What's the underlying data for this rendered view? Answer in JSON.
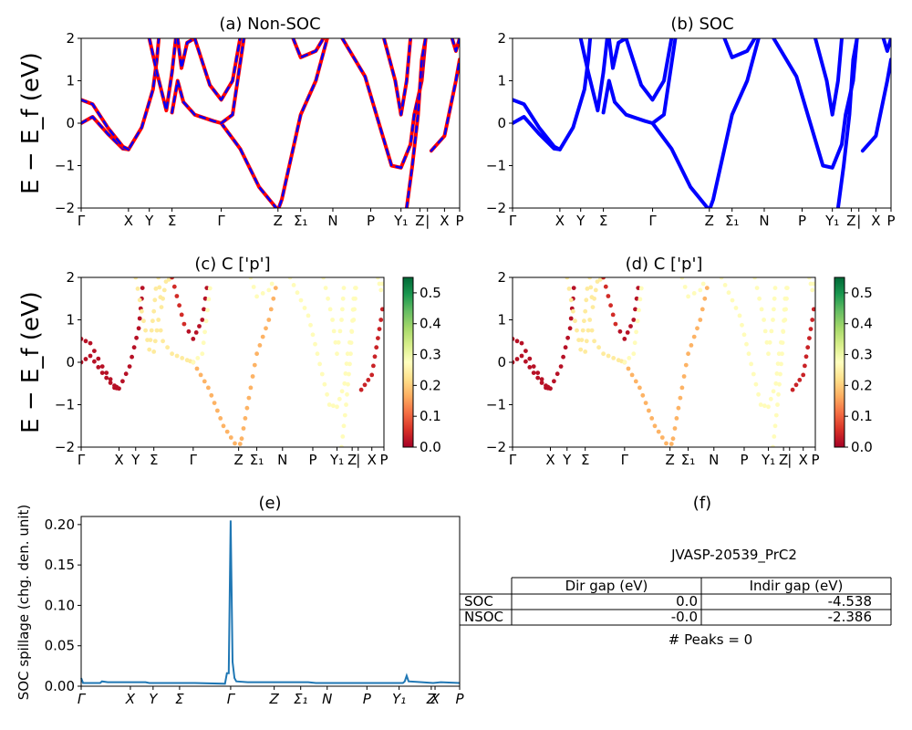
{
  "chart_data": [
    {
      "id": "a",
      "type": "line",
      "title": "(a) Non-SOC",
      "ylabel": "E − E_f (eV)",
      "ylim": [
        -2,
        2
      ],
      "yticks": [
        "−2",
        "−1",
        "0",
        "1",
        "2"
      ],
      "kpoints": [
        {
          "label": "Γ",
          "x": 0.0
        },
        {
          "label": "X",
          "x": 0.125
        },
        {
          "label": "Y",
          "x": 0.18
        },
        {
          "label": "Σ",
          "x": 0.24
        },
        {
          "label": "Γ",
          "x": 0.37
        },
        {
          "label": "Z",
          "x": 0.52
        },
        {
          "label": "Σ₁",
          "x": 0.58
        },
        {
          "label": "N",
          "x": 0.665
        },
        {
          "label": "P",
          "x": 0.765
        },
        {
          "label": "Y₁",
          "x": 0.845
        },
        {
          "label": "Z",
          "x": 0.895
        },
        {
          "label": "|",
          "x": 0.915
        },
        {
          "label": "X",
          "x": 0.96
        },
        {
          "label": "P",
          "x": 1.0
        }
      ],
      "series": [
        {
          "color": "#ff0000",
          "dash": "none",
          "bands": [
            [
              [
                0,
                0
              ],
              [
                0.03,
                0.15
              ],
              [
                0.07,
                -0.25
              ],
              [
                0.11,
                -0.6
              ],
              [
                0.125,
                -0.62
              ],
              [
                0.16,
                -0.1
              ],
              [
                0.19,
                0.8
              ],
              [
                0.2,
                1.5
              ],
              [
                0.205,
                2
              ]
            ],
            [
              [
                0,
                0.55
              ],
              [
                0.03,
                0.45
              ],
              [
                0.07,
                -0.1
              ],
              [
                0.11,
                -0.55
              ],
              [
                0.125,
                -0.62
              ]
            ],
            [
              [
                0.18,
                2
              ],
              [
                0.2,
                1.2
              ],
              [
                0.225,
                0.3
              ],
              [
                0.24,
                1.2
              ],
              [
                0.25,
                2
              ]
            ],
            [
              [
                0.24,
                0.25
              ],
              [
                0.255,
                1.0
              ],
              [
                0.27,
                0.5
              ],
              [
                0.3,
                0.2
              ],
              [
                0.35,
                0.05
              ],
              [
                0.37,
                0.0
              ],
              [
                0.42,
                -0.6
              ],
              [
                0.47,
                -1.5
              ],
              [
                0.52,
                -2.05
              ],
              [
                0.53,
                -1.8
              ],
              [
                0.56,
                -0.6
              ],
              [
                0.58,
                0.2
              ],
              [
                0.62,
                1.0
              ],
              [
                0.65,
                2
              ]
            ],
            [
              [
                0.255,
                2
              ],
              [
                0.265,
                1.3
              ],
              [
                0.28,
                1.9
              ],
              [
                0.3,
                2
              ]
            ],
            [
              [
                0.3,
                2
              ],
              [
                0.34,
                0.9
              ],
              [
                0.37,
                0.55
              ],
              [
                0.4,
                1.0
              ],
              [
                0.42,
                2
              ]
            ],
            [
              [
                0.37,
                0.0
              ],
              [
                0.4,
                0.2
              ],
              [
                0.43,
                2
              ]
            ],
            [
              [
                0.56,
                2
              ],
              [
                0.58,
                1.55
              ],
              [
                0.62,
                1.7
              ],
              [
                0.64,
                2
              ]
            ],
            [
              [
                0.69,
                2
              ],
              [
                0.75,
                1.1
              ],
              [
                0.78,
                0.2
              ],
              [
                0.82,
                -1.0
              ],
              [
                0.845,
                -1.05
              ],
              [
                0.87,
                -0.5
              ],
              [
                0.88,
                0.2
              ],
              [
                0.9,
                1.0
              ],
              [
                0.91,
                2
              ]
            ],
            [
              [
                0.8,
                2
              ],
              [
                0.83,
                1.0
              ],
              [
                0.845,
                0.2
              ],
              [
                0.86,
                1.0
              ],
              [
                0.87,
                2
              ]
            ],
            [
              [
                0.86,
                -2
              ],
              [
                0.875,
                -1.0
              ],
              [
                0.89,
                0.2
              ],
              [
                0.9,
                1.5
              ],
              [
                0.91,
                2
              ]
            ],
            [
              [
                0.925,
                -0.65
              ],
              [
                0.96,
                -0.3
              ],
              [
                0.99,
                1.0
              ],
              [
                1.0,
                1.5
              ]
            ],
            [
              [
                0.98,
                2
              ],
              [
                0.99,
                1.7
              ],
              [
                1.0,
                2
              ]
            ]
          ]
        },
        {
          "color": "#0000ff",
          "dash": "6,6",
          "bands": "same-as-previous"
        }
      ]
    },
    {
      "id": "b",
      "type": "line",
      "title": "(b) SOC",
      "ylim": [
        -2,
        2
      ],
      "yticks": [
        "−2",
        "−1",
        "0",
        "1",
        "2"
      ],
      "color": "#0000ff",
      "kpoints": [
        {
          "label": "Γ",
          "x": 0.0
        },
        {
          "label": "X",
          "x": 0.125
        },
        {
          "label": "Y",
          "x": 0.18
        },
        {
          "label": "Σ",
          "x": 0.24
        },
        {
          "label": "Γ",
          "x": 0.37
        },
        {
          "label": "Z",
          "x": 0.52
        },
        {
          "label": "Σ₁",
          "x": 0.58
        },
        {
          "label": "N",
          "x": 0.665
        },
        {
          "label": "P",
          "x": 0.765
        },
        {
          "label": "Y₁",
          "x": 0.845
        },
        {
          "label": "Z",
          "x": 0.895
        },
        {
          "label": "|",
          "x": 0.915
        },
        {
          "label": "X",
          "x": 0.96
        },
        {
          "label": "P",
          "x": 1.0
        }
      ]
    },
    {
      "id": "c",
      "type": "scatter",
      "title": "(c)  C ['p']",
      "ylabel": "E − E_f (eV)",
      "ylim": [
        -2,
        2
      ],
      "yticks": [
        "−2",
        "−1",
        "0",
        "1",
        "2"
      ],
      "colorbar": {
        "min": 0.0,
        "max": 0.55,
        "ticks": [
          "0.0",
          "0.1",
          "0.2",
          "0.3",
          "0.4",
          "0.5"
        ]
      },
      "kpoints": [
        {
          "label": "Γ",
          "x": 0.0
        },
        {
          "label": "X",
          "x": 0.125
        },
        {
          "label": "Y",
          "x": 0.18
        },
        {
          "label": "Σ",
          "x": 0.24
        },
        {
          "label": "Γ",
          "x": 0.37
        },
        {
          "label": "Z",
          "x": 0.52
        },
        {
          "label": "Σ₁",
          "x": 0.58
        },
        {
          "label": "N",
          "x": 0.665
        },
        {
          "label": "P",
          "x": 0.765
        },
        {
          "label": "Y₁",
          "x": 0.845
        },
        {
          "label": "Z",
          "x": 0.895
        },
        {
          "label": "|",
          "x": 0.915
        },
        {
          "label": "X",
          "x": 0.96
        },
        {
          "label": "P",
          "x": 1.0
        }
      ]
    },
    {
      "id": "d",
      "type": "scatter",
      "title": "(d) C ['p']",
      "ylim": [
        -2,
        2
      ],
      "yticks": [
        "−2",
        "−1",
        "0",
        "1",
        "2"
      ],
      "colorbar": {
        "min": 0.0,
        "max": 0.55,
        "ticks": [
          "0.0",
          "0.1",
          "0.2",
          "0.3",
          "0.4",
          "0.5"
        ]
      },
      "kpoints": [
        {
          "label": "Γ",
          "x": 0.0
        },
        {
          "label": "X",
          "x": 0.125
        },
        {
          "label": "Y",
          "x": 0.18
        },
        {
          "label": "Σ",
          "x": 0.24
        },
        {
          "label": "Γ",
          "x": 0.37
        },
        {
          "label": "Z",
          "x": 0.52
        },
        {
          "label": "Σ₁",
          "x": 0.58
        },
        {
          "label": "N",
          "x": 0.665
        },
        {
          "label": "P",
          "x": 0.765
        },
        {
          "label": "Y₁",
          "x": 0.845
        },
        {
          "label": "Z",
          "x": 0.895
        },
        {
          "label": "|",
          "x": 0.915
        },
        {
          "label": "X",
          "x": 0.96
        },
        {
          "label": "P",
          "x": 1.0
        }
      ]
    },
    {
      "id": "e",
      "type": "line",
      "title": "(e)",
      "ylabel": "SOC spillage (chg. den. unit)",
      "ylim": [
        0,
        0.21
      ],
      "yticks": [
        "0.00",
        "0.05",
        "0.10",
        "0.15",
        "0.20"
      ],
      "yvals": [
        0,
        0.05,
        0.1,
        0.15,
        0.2
      ],
      "color": "#1f77b4",
      "kpoints": [
        {
          "label": "Γ",
          "x": 0.0
        },
        {
          "label": "X",
          "x": 0.13
        },
        {
          "label": "Y",
          "x": 0.19
        },
        {
          "label": "Σ",
          "x": 0.26
        },
        {
          "label": "Γ",
          "x": 0.395
        },
        {
          "label": "Z",
          "x": 0.51
        },
        {
          "label": "Σ₁",
          "x": 0.58
        },
        {
          "label": "N",
          "x": 0.65
        },
        {
          "label": "P",
          "x": 0.755
        },
        {
          "label": "Y₁",
          "x": 0.84
        },
        {
          "label": "Z",
          "x": 0.925
        },
        {
          "label": "X",
          "x": 0.935
        },
        {
          "label": "P",
          "x": 1.0
        }
      ],
      "points": [
        [
          0,
          0.01
        ],
        [
          0.005,
          0.004
        ],
        [
          0.05,
          0.004
        ],
        [
          0.055,
          0.006
        ],
        [
          0.07,
          0.005
        ],
        [
          0.13,
          0.005
        ],
        [
          0.17,
          0.005
        ],
        [
          0.18,
          0.004
        ],
        [
          0.3,
          0.004
        ],
        [
          0.38,
          0.003
        ],
        [
          0.385,
          0.016
        ],
        [
          0.39,
          0.016
        ],
        [
          0.395,
          0.205
        ],
        [
          0.4,
          0.03
        ],
        [
          0.405,
          0.01
        ],
        [
          0.41,
          0.006
        ],
        [
          0.44,
          0.005
        ],
        [
          0.6,
          0.005
        ],
        [
          0.62,
          0.004
        ],
        [
          0.85,
          0.004
        ],
        [
          0.855,
          0.006
        ],
        [
          0.86,
          0.013
        ],
        [
          0.865,
          0.006
        ],
        [
          0.9,
          0.005
        ],
        [
          0.93,
          0.004
        ],
        [
          0.95,
          0.005
        ],
        [
          1.0,
          0.004
        ]
      ]
    }
  ],
  "panel_f": {
    "title": "(f)",
    "material": "JVASP-20539_PrC2",
    "table": {
      "headers": [
        "Dir gap (eV)",
        "Indir gap (eV)"
      ],
      "rows": [
        {
          "label": "SOC",
          "dir": "0.0",
          "indir": "-4.538"
        },
        {
          "label": "NSOC",
          "dir": "-0.0",
          "indir": "-2.386"
        }
      ]
    },
    "peaks": "# Peaks = 0"
  }
}
